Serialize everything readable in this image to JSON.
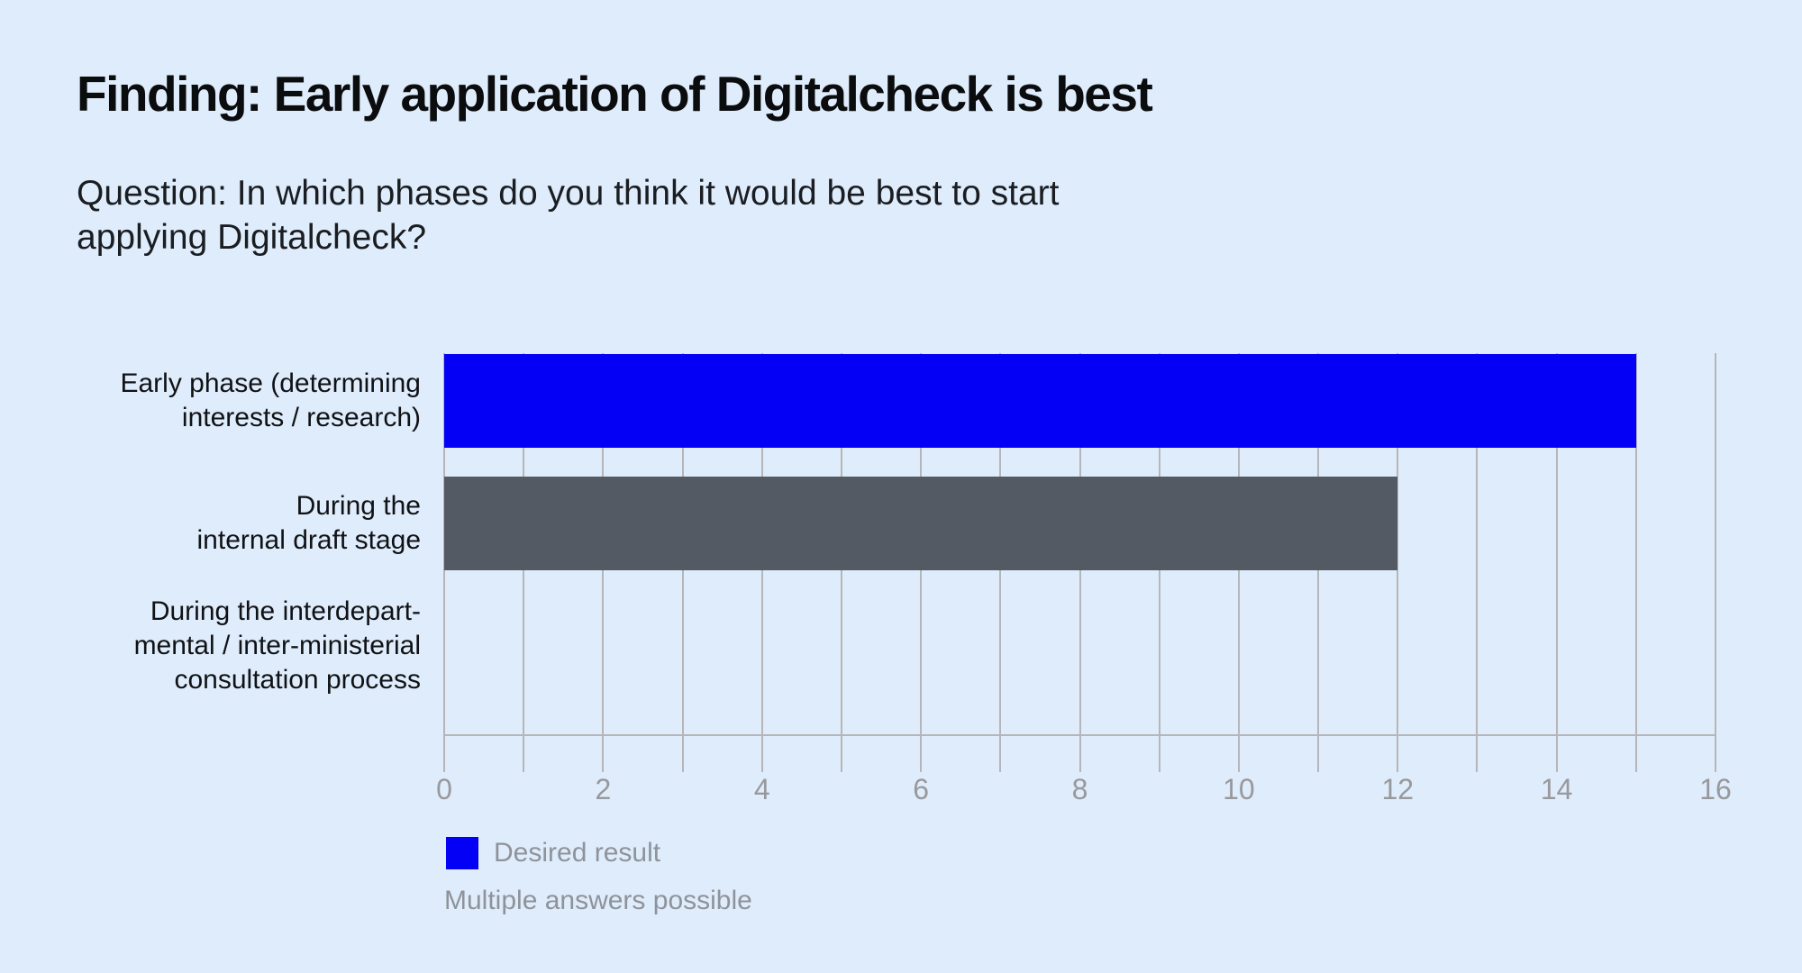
{
  "chart_data": {
    "type": "bar",
    "orientation": "horizontal",
    "title": "Finding: Early application of Digitalcheck is best",
    "subtitle": "Question: In which phases do you think it would be best to start\napplying Digitalcheck?",
    "categories": [
      [
        "Early phase (determining",
        "interests / research)"
      ],
      [
        "During the",
        "internal draft stage"
      ],
      [
        "During the interdepart-",
        "mental / inter-ministerial",
        "consultation process"
      ]
    ],
    "values": [
      15,
      12,
      0
    ],
    "bar_colors": [
      "#0400f5",
      "#545a63",
      "none"
    ],
    "xlim": [
      0,
      16
    ],
    "x_major_ticks": [
      0,
      2,
      4,
      6,
      8,
      10,
      12,
      14,
      16
    ],
    "x_minor_step": 1,
    "grid": "vertical-only",
    "legend": {
      "swatch_color": "#0400f5",
      "label": "Desired result",
      "position": "below-left"
    },
    "note": "Multiple answers possible",
    "colors": {
      "background": "#dfecfb",
      "gridline": "#b6b6b8",
      "tick_label": "#97999c",
      "text": "#121418",
      "muted_text": "#8e939b"
    }
  }
}
